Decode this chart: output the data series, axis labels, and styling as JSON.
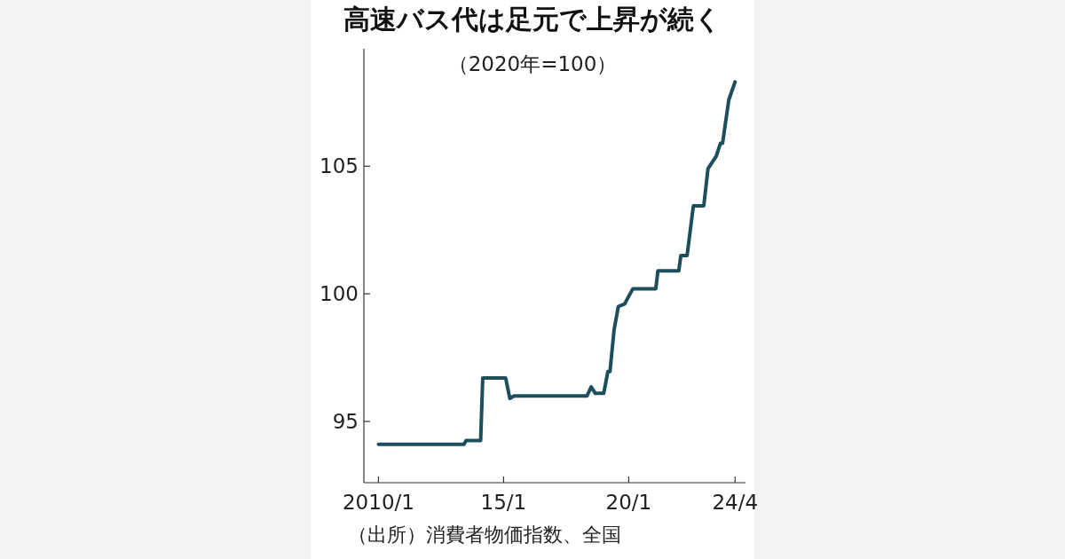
{
  "chart_data": {
    "type": "line",
    "title": "高速バス代は足元で上昇が続く",
    "subtitle": "（2020年=100）",
    "x": [
      "2010-01",
      "2013-06",
      "2013-07",
      "2014-02",
      "2014-03",
      "2015-02",
      "2015-04",
      "2015-06",
      "2018-05",
      "2018-07",
      "2018-09",
      "2019-01",
      "2019-03",
      "2019-04",
      "2019-06",
      "2019-08",
      "2019-11",
      "2020-03",
      "2021-02",
      "2021-03",
      "2022-01",
      "2022-02",
      "2022-05",
      "2022-08",
      "2023-01",
      "2023-03",
      "2023-07",
      "2023-09",
      "2023-10",
      "2024-01",
      "2024-04"
    ],
    "series": [
      {
        "color": "#1d4e5c",
        "values": [
          94.1,
          94.1,
          94.25,
          94.25,
          96.7,
          96.7,
          95.9,
          96.0,
          96.0,
          96.35,
          96.1,
          96.1,
          96.95,
          96.95,
          98.6,
          99.5,
          99.6,
          100.2,
          100.2,
          100.9,
          100.9,
          101.5,
          101.5,
          103.45,
          103.45,
          104.9,
          105.4,
          105.9,
          105.9,
          107.6,
          108.3
        ]
      }
    ],
    "xlim": [
      "2009-06",
      "2024-09"
    ],
    "ylim": [
      92.6,
      109.6
    ],
    "yticks": [
      95,
      100,
      105
    ],
    "xticks": [
      {
        "value": "2010-01",
        "label": "2010/1"
      },
      {
        "value": "2015-01",
        "label": "15/1"
      },
      {
        "value": "2020-01",
        "label": "20/1"
      },
      {
        "value": "2024-04",
        "label": "24/4"
      }
    ],
    "annotations": [
      "（出所）消費者物価指数、全国"
    ]
  }
}
